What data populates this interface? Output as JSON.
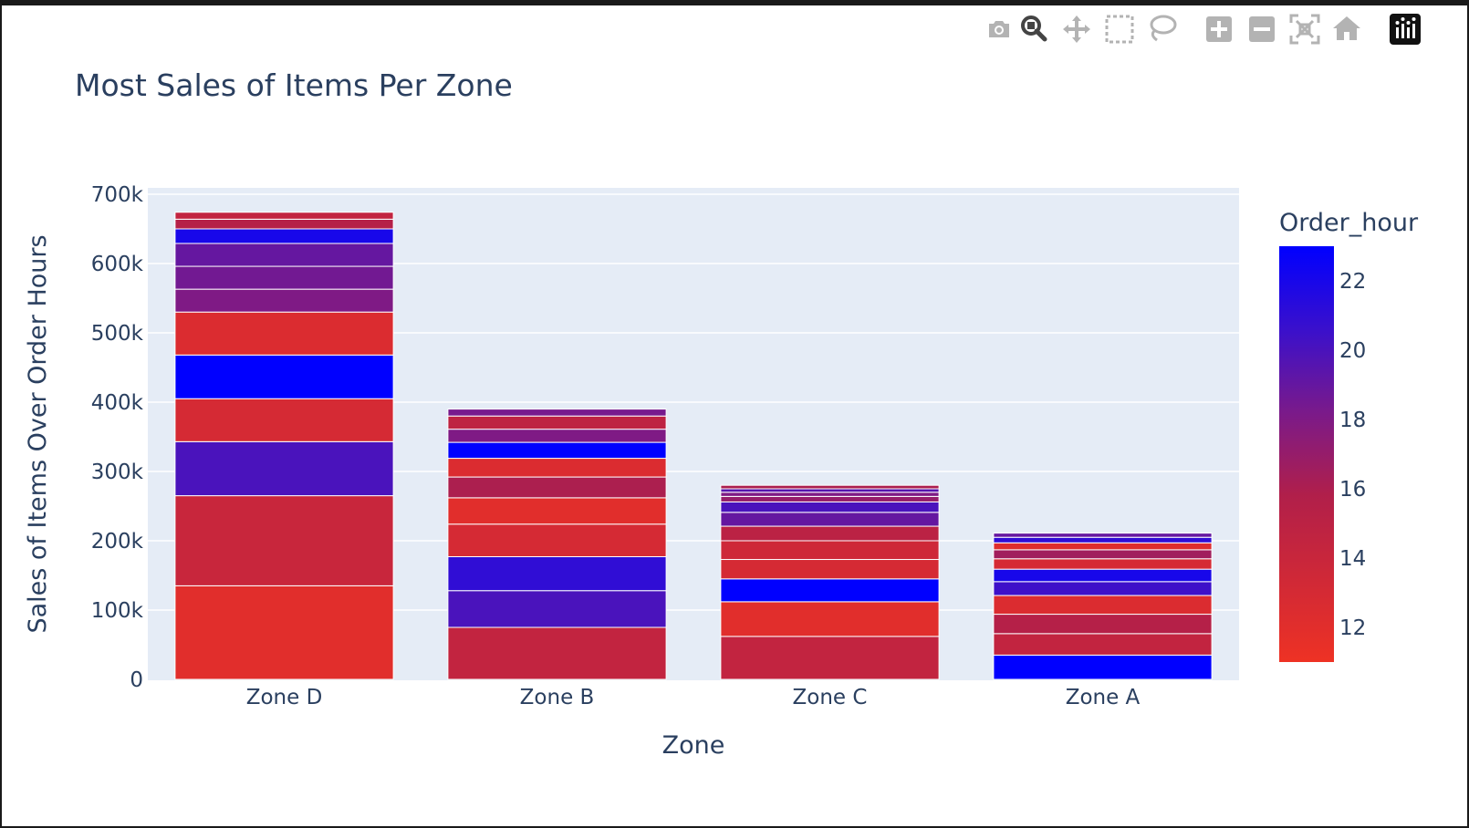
{
  "modebar": {
    "buttons": [
      {
        "name": "camera-icon",
        "title": "Download plot as a png"
      },
      {
        "name": "zoom-icon",
        "title": "Zoom"
      },
      {
        "name": "pan-icon",
        "title": "Pan"
      },
      {
        "name": "box-select-icon",
        "title": "Box Select"
      },
      {
        "name": "lasso-select-icon",
        "title": "Lasso Select"
      },
      {
        "name": "zoom-in-icon",
        "title": "Zoom in"
      },
      {
        "name": "zoom-out-icon",
        "title": "Zoom out"
      },
      {
        "name": "autoscale-icon",
        "title": "Autoscale"
      },
      {
        "name": "reset-axes-icon",
        "title": "Reset axes"
      },
      {
        "name": "plotly-logo-icon",
        "title": "Produced with Plotly"
      }
    ]
  },
  "chart_data": {
    "type": "bar",
    "barmode": "stack",
    "title": "Most Sales of Items Per Zone",
    "xlabel": "Zone",
    "ylabel": "Sales of Items Over Order Hours",
    "categories": [
      "Zone D",
      "Zone B",
      "Zone C",
      "Zone A"
    ],
    "ylim": [
      0,
      700000
    ],
    "yticks": [
      0,
      100000,
      200000,
      300000,
      400000,
      500000,
      600000,
      700000
    ],
    "ytick_labels": [
      "0",
      "100k",
      "200k",
      "300k",
      "400k",
      "500k",
      "600k",
      "700k"
    ],
    "grid": true,
    "colorbar": {
      "title": "Order_hour",
      "range": [
        11,
        23
      ],
      "ticks": [
        12,
        14,
        16,
        18,
        20,
        22
      ],
      "tick_labels": [
        "12",
        "14",
        "16",
        "18",
        "20",
        "22"
      ],
      "colors": [
        "#ee3224",
        "#0000ff"
      ]
    },
    "stacks": [
      {
        "category": "Zone D",
        "segments": [
          {
            "hour": 12,
            "value": 135000
          },
          {
            "hour": 14,
            "value": 130000
          },
          {
            "hour": 20,
            "value": 78000
          },
          {
            "hour": 13,
            "value": 62000
          },
          {
            "hour": 23,
            "value": 63000
          },
          {
            "hour": 12.5,
            "value": 62000
          },
          {
            "hour": 18,
            "value": 33000
          },
          {
            "hour": 18.5,
            "value": 33000
          },
          {
            "hour": 19,
            "value": 33000
          },
          {
            "hour": 22,
            "value": 21000
          },
          {
            "hour": 15.5,
            "value": 14000
          },
          {
            "hour": 14.5,
            "value": 10000
          }
        ]
      },
      {
        "category": "Zone B",
        "segments": [
          {
            "hour": 14.5,
            "value": 75000
          },
          {
            "hour": 20,
            "value": 53000
          },
          {
            "hour": 21,
            "value": 49000
          },
          {
            "hour": 13,
            "value": 47000
          },
          {
            "hour": 12,
            "value": 38000
          },
          {
            "hour": 16,
            "value": 30000
          },
          {
            "hour": 12.5,
            "value": 27000
          },
          {
            "hour": 23,
            "value": 23000
          },
          {
            "hour": 18,
            "value": 19000
          },
          {
            "hour": 14.8,
            "value": 19000
          },
          {
            "hour": 18.3,
            "value": 10000
          }
        ]
      },
      {
        "category": "Zone C",
        "segments": [
          {
            "hour": 14.5,
            "value": 62000
          },
          {
            "hour": 12,
            "value": 50000
          },
          {
            "hour": 23,
            "value": 33000
          },
          {
            "hour": 13,
            "value": 28000
          },
          {
            "hour": 13.5,
            "value": 27000
          },
          {
            "hour": 15,
            "value": 21000
          },
          {
            "hour": 19,
            "value": 20000
          },
          {
            "hour": 20,
            "value": 15000
          },
          {
            "hour": 17,
            "value": 8000
          },
          {
            "hour": 18,
            "value": 6000
          },
          {
            "hour": 19.5,
            "value": 5000
          },
          {
            "hour": 16,
            "value": 5000
          }
        ]
      },
      {
        "category": "Zone A",
        "segments": [
          {
            "hour": 23,
            "value": 35000
          },
          {
            "hour": 14.5,
            "value": 31000
          },
          {
            "hour": 15.5,
            "value": 28000
          },
          {
            "hour": 12.5,
            "value": 27000
          },
          {
            "hour": 20.5,
            "value": 20000
          },
          {
            "hour": 22,
            "value": 18000
          },
          {
            "hour": 13,
            "value": 15000
          },
          {
            "hour": 16.5,
            "value": 13000
          },
          {
            "hour": 12.2,
            "value": 10000
          },
          {
            "hour": 21,
            "value": 8000
          },
          {
            "hour": 19,
            "value": 6000
          }
        ]
      }
    ]
  }
}
